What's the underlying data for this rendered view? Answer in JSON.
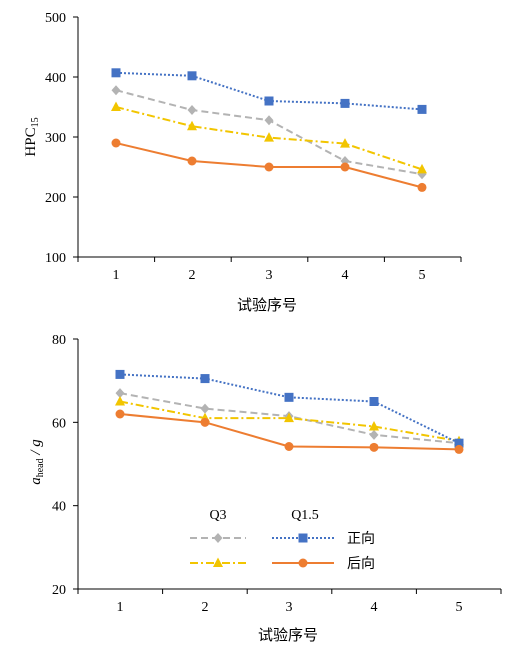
{
  "chart_data": [
    {
      "type": "line",
      "xlabel": "试验序号",
      "ylabel": "HPC",
      "ylabel_sub": "15",
      "categories": [
        "1",
        "2",
        "3",
        "4",
        "5"
      ],
      "ylim": [
        100,
        500
      ],
      "yticks": [
        "100",
        "200",
        "300",
        "400",
        "500"
      ],
      "grid": false,
      "series": [
        {
          "key": "q3_fwd",
          "color": "#b3b3b3",
          "dash": "7,4",
          "marker": "diamond",
          "values": [
            378,
            345,
            328,
            260,
            238
          ]
        },
        {
          "key": "q3_bwd",
          "color": "#f2c500",
          "dash": "8,3,2,3",
          "marker": "triangle",
          "values": [
            350,
            318,
            299,
            289,
            246
          ]
        },
        {
          "key": "q15_fwd",
          "color": "#4472c4",
          "dash": "2,2",
          "marker": "square",
          "values": [
            407,
            402,
            360,
            356,
            346
          ]
        },
        {
          "key": "q15_bwd",
          "color": "#ed7d31",
          "dash": "",
          "marker": "circle",
          "values": [
            290,
            260,
            250,
            250,
            216
          ]
        }
      ]
    },
    {
      "type": "line",
      "xlabel": "试验序号",
      "ylabel_a": "a",
      "ylabel_sub": "head",
      "ylabel_rest": " / g",
      "categories": [
        "1",
        "2",
        "3",
        "4",
        "5"
      ],
      "ylim": [
        20,
        80
      ],
      "yticks": [
        "20",
        "40",
        "60",
        "80"
      ],
      "grid": false,
      "legend": {
        "placement": "bottom-center",
        "col1": "Q3",
        "col2": "Q1.5",
        "row1": "正向",
        "row2": "后向"
      },
      "series": [
        {
          "key": "q3_fwd",
          "color": "#b3b3b3",
          "dash": "7,4",
          "marker": "diamond",
          "values": [
            67.0,
            63.3,
            61.5,
            57.0,
            55.0
          ]
        },
        {
          "key": "q3_bwd",
          "color": "#f2c500",
          "dash": "8,3,2,3",
          "marker": "triangle",
          "values": [
            65.0,
            61.0,
            61.0,
            59.0,
            55.5
          ]
        },
        {
          "key": "q15_fwd",
          "color": "#4472c4",
          "dash": "2,2",
          "marker": "square",
          "values": [
            71.5,
            70.5,
            66.0,
            65.0,
            55.0
          ]
        },
        {
          "key": "q15_bwd",
          "color": "#ed7d31",
          "dash": "",
          "marker": "circle",
          "values": [
            62.0,
            60.0,
            54.2,
            54.0,
            53.5
          ]
        }
      ]
    }
  ]
}
